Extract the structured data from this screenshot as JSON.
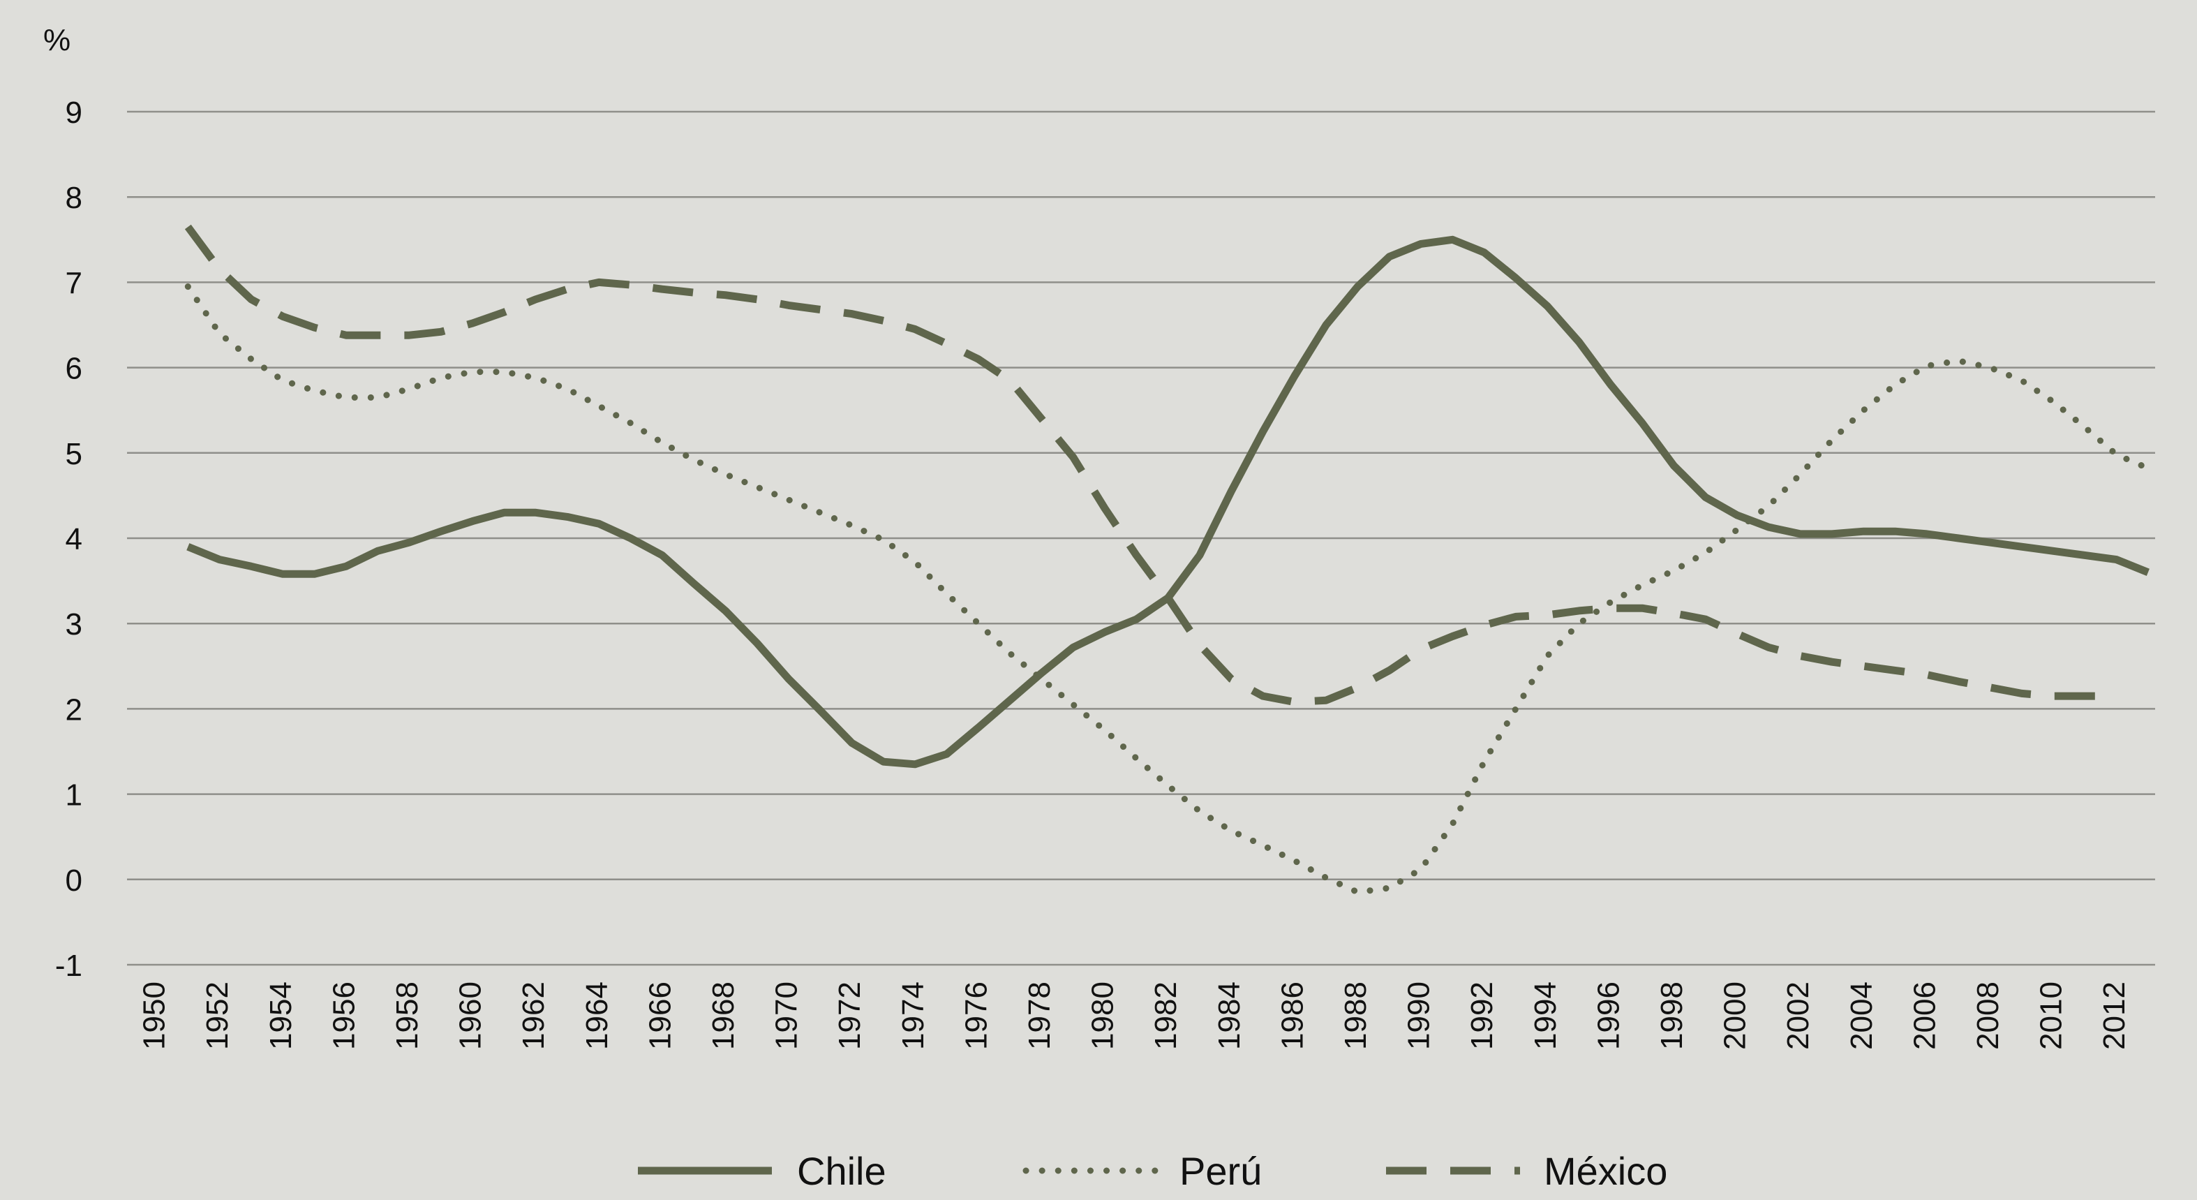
{
  "chart_data": {
    "type": "line",
    "title": "",
    "xlabel": "",
    "ylabel": "%",
    "ylim": [
      -1,
      9
    ],
    "yticks": [
      -1,
      0,
      1,
      2,
      3,
      4,
      5,
      6,
      7,
      8,
      9
    ],
    "xlim": [
      1950,
      2013
    ],
    "xticks": [
      "1950",
      "1952",
      "1954",
      "1956",
      "1958",
      "1960",
      "1962",
      "1964",
      "1966",
      "1968",
      "1970",
      "1972",
      "1974",
      "1976",
      "1978",
      "1980",
      "1982",
      "1984",
      "1986",
      "1988",
      "1990",
      "1992",
      "1994",
      "1996",
      "1998",
      "2000",
      "2002",
      "2004",
      "2006",
      "2008",
      "2010",
      "2012"
    ],
    "grid": "horizontal",
    "legend_position": "bottom",
    "line_color": "#5f664c",
    "series": [
      {
        "name": "Chile",
        "style": "solid",
        "x": [
          1951,
          1952,
          1953,
          1954,
          1955,
          1956,
          1957,
          1958,
          1959,
          1960,
          1961,
          1962,
          1963,
          1964,
          1965,
          1966,
          1967,
          1968,
          1969,
          1970,
          1971,
          1972,
          1973,
          1974,
          1975,
          1976,
          1977,
          1978,
          1979,
          1980,
          1981,
          1982,
          1983,
          1984,
          1985,
          1986,
          1987,
          1988,
          1989,
          1990,
          1991,
          1992,
          1993,
          1994,
          1995,
          1996,
          1997,
          1998,
          1999,
          2000,
          2001,
          2002,
          2003,
          2004,
          2005,
          2006,
          2007,
          2008,
          2009,
          2010,
          2011,
          2012,
          2013
        ],
        "values": [
          3.9,
          3.75,
          3.67,
          3.58,
          3.58,
          3.67,
          3.85,
          3.95,
          4.08,
          4.2,
          4.3,
          4.3,
          4.25,
          4.17,
          4.0,
          3.8,
          3.47,
          3.15,
          2.77,
          2.35,
          1.98,
          1.6,
          1.38,
          1.35,
          1.47,
          1.78,
          2.1,
          2.42,
          2.72,
          2.9,
          3.05,
          3.3,
          3.8,
          4.55,
          5.25,
          5.9,
          6.5,
          6.95,
          7.3,
          7.45,
          7.5,
          7.35,
          7.05,
          6.72,
          6.3,
          5.8,
          5.35,
          4.85,
          4.48,
          4.27,
          4.13,
          4.05,
          4.05,
          4.08,
          4.08,
          4.05,
          4.0,
          3.95,
          3.9,
          3.85,
          3.8,
          3.75,
          3.6
        ]
      },
      {
        "name": "Perú",
        "style": "dotted",
        "x": [
          1951,
          1952,
          1953,
          1954,
          1955,
          1956,
          1957,
          1958,
          1959,
          1960,
          1961,
          1962,
          1963,
          1964,
          1965,
          1966,
          1967,
          1968,
          1969,
          1970,
          1971,
          1972,
          1973,
          1974,
          1975,
          1976,
          1977,
          1978,
          1979,
          1980,
          1981,
          1982,
          1983,
          1984,
          1985,
          1986,
          1987,
          1988,
          1989,
          1990,
          1991,
          1992,
          1993,
          1994,
          1995,
          1996,
          1997,
          1998,
          1999,
          2000,
          2001,
          2002,
          2003,
          2004,
          2005,
          2006,
          2007,
          2008,
          2009,
          2010,
          2011,
          2012,
          2013
        ],
        "values": [
          6.95,
          6.4,
          6.1,
          5.85,
          5.73,
          5.65,
          5.65,
          5.75,
          5.88,
          5.95,
          5.95,
          5.88,
          5.75,
          5.55,
          5.35,
          5.12,
          4.92,
          4.75,
          4.6,
          4.45,
          4.3,
          4.15,
          3.98,
          3.72,
          3.35,
          3.0,
          2.65,
          2.35,
          2.05,
          1.75,
          1.42,
          1.1,
          0.8,
          0.57,
          0.4,
          0.22,
          0.02,
          -0.15,
          -0.1,
          0.12,
          0.65,
          1.38,
          2.0,
          2.62,
          3.0,
          3.25,
          3.45,
          3.62,
          3.83,
          4.1,
          4.38,
          4.75,
          5.15,
          5.5,
          5.8,
          6.02,
          6.08,
          6.0,
          5.85,
          5.6,
          5.3,
          4.98,
          4.82
        ]
      },
      {
        "name": "México",
        "style": "dashed",
        "x": [
          1951,
          1952,
          1953,
          1954,
          1955,
          1956,
          1957,
          1958,
          1959,
          1960,
          1961,
          1962,
          1963,
          1964,
          1965,
          1966,
          1967,
          1968,
          1969,
          1970,
          1971,
          1972,
          1973,
          1974,
          1975,
          1976,
          1977,
          1978,
          1979,
          1980,
          1981,
          1982,
          1983,
          1984,
          1985,
          1986,
          1987,
          1988,
          1989,
          1990,
          1991,
          1992,
          1993,
          1994,
          1995,
          1996,
          1997,
          1998,
          1999,
          2000,
          2001,
          2002,
          2003,
          2004,
          2005,
          2006,
          2007,
          2008,
          2009,
          2010,
          2011,
          2012
        ],
        "values": [
          7.65,
          7.15,
          6.8,
          6.6,
          6.47,
          6.38,
          6.38,
          6.38,
          6.42,
          6.52,
          6.65,
          6.8,
          6.92,
          7.0,
          6.97,
          6.92,
          6.88,
          6.85,
          6.8,
          6.73,
          6.68,
          6.63,
          6.55,
          6.45,
          6.28,
          6.1,
          5.85,
          5.4,
          4.95,
          4.35,
          3.8,
          3.3,
          2.75,
          2.35,
          2.15,
          2.08,
          2.1,
          2.25,
          2.45,
          2.7,
          2.85,
          2.98,
          3.08,
          3.1,
          3.15,
          3.18,
          3.18,
          3.12,
          3.05,
          2.88,
          2.72,
          2.62,
          2.55,
          2.5,
          2.45,
          2.4,
          2.32,
          2.25,
          2.18,
          2.15,
          2.15,
          2.15
        ]
      }
    ]
  }
}
